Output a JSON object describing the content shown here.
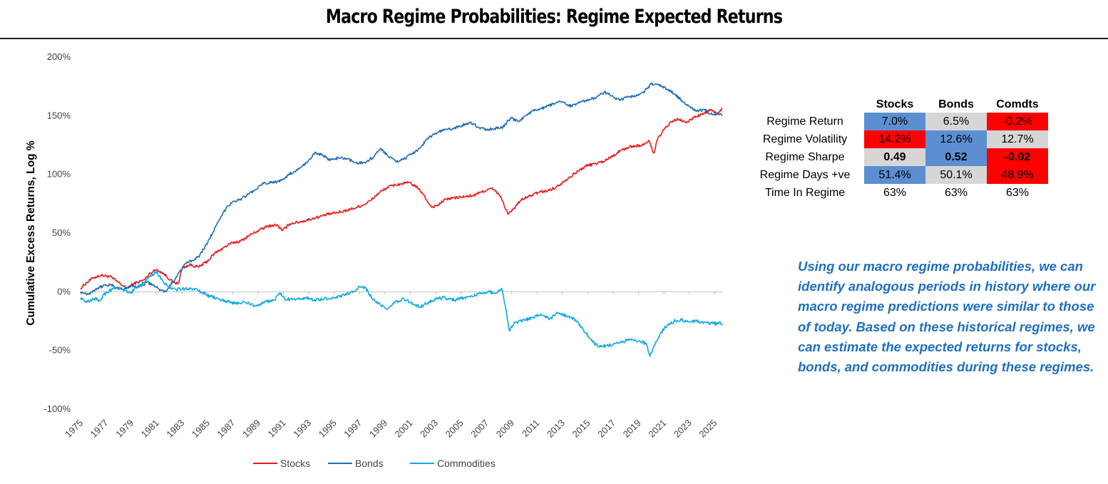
{
  "title": "Macro Regime Probabilities: Regime Expected Returns",
  "chart_data": {
    "type": "line",
    "ylabel": "Cumulative Excess Returns, Log %",
    "ylim": [
      -1.0,
      2.0
    ],
    "y_ticks": [
      "-100%",
      "-50%",
      "0%",
      "50%",
      "100%",
      "150%",
      "200%"
    ],
    "y_tick_values": [
      -1.0,
      -0.5,
      0,
      0.5,
      1.0,
      1.5,
      2.0
    ],
    "xlim": [
      1975,
      2025.6
    ],
    "x_ticks": [
      "1975",
      "1977",
      "1979",
      "1981",
      "1983",
      "1985",
      "1987",
      "1989",
      "1991",
      "1993",
      "1995",
      "1997",
      "1999",
      "2001",
      "2003",
      "2005",
      "2007",
      "2009",
      "2011",
      "2013",
      "2015",
      "2017",
      "2019",
      "2021",
      "2023",
      "2025"
    ],
    "legend_position": "bottom",
    "series": [
      {
        "name": "Stocks",
        "color": "#e8191a",
        "points": [
          [
            1975,
            0.03
          ],
          [
            1975.5,
            0.08
          ],
          [
            1976,
            0.12
          ],
          [
            1976.6,
            0.14
          ],
          [
            1977.3,
            0.13
          ],
          [
            1978,
            0.08
          ],
          [
            1978.6,
            0.03
          ],
          [
            1979.2,
            0.07
          ],
          [
            1980,
            0.1
          ],
          [
            1980.5,
            0.16
          ],
          [
            1981,
            0.19
          ],
          [
            1981.6,
            0.15
          ],
          [
            1982.3,
            0.08
          ],
          [
            1982.7,
            0.07
          ],
          [
            1983,
            0.2
          ],
          [
            1983.6,
            0.23
          ],
          [
            1984.3,
            0.21
          ],
          [
            1985,
            0.26
          ],
          [
            1985.6,
            0.33
          ],
          [
            1986.2,
            0.37
          ],
          [
            1987,
            0.42
          ],
          [
            1987.6,
            0.43
          ],
          [
            1988.3,
            0.48
          ],
          [
            1989,
            0.52
          ],
          [
            1989.8,
            0.56
          ],
          [
            1990.5,
            0.57
          ],
          [
            1990.9,
            0.52
          ],
          [
            1991.5,
            0.58
          ],
          [
            1992.5,
            0.6
          ],
          [
            1993.5,
            0.63
          ],
          [
            1994.5,
            0.66
          ],
          [
            1995.5,
            0.68
          ],
          [
            1996.5,
            0.71
          ],
          [
            1997.3,
            0.74
          ],
          [
            1997.9,
            0.78
          ],
          [
            1998.5,
            0.84
          ],
          [
            1999.2,
            0.89
          ],
          [
            1999.8,
            0.91
          ],
          [
            2000.3,
            0.92
          ],
          [
            2000.9,
            0.93
          ],
          [
            2001.4,
            0.9
          ],
          [
            2001.9,
            0.85
          ],
          [
            2002.3,
            0.78
          ],
          [
            2002.7,
            0.72
          ],
          [
            2003.2,
            0.74
          ],
          [
            2003.8,
            0.79
          ],
          [
            2004.5,
            0.8
          ],
          [
            2005.3,
            0.81
          ],
          [
            2006,
            0.82
          ],
          [
            2006.6,
            0.85
          ],
          [
            2007.4,
            0.88
          ],
          [
            2007.9,
            0.84
          ],
          [
            2008.3,
            0.77
          ],
          [
            2008.7,
            0.66
          ],
          [
            2009.1,
            0.7
          ],
          [
            2009.7,
            0.78
          ],
          [
            2010.5,
            0.82
          ],
          [
            2011.2,
            0.85
          ],
          [
            2011.8,
            0.86
          ],
          [
            2012.5,
            0.89
          ],
          [
            2013.2,
            0.95
          ],
          [
            2014,
            1.01
          ],
          [
            2014.8,
            1.07
          ],
          [
            2015.5,
            1.09
          ],
          [
            2016.2,
            1.11
          ],
          [
            2017,
            1.16
          ],
          [
            2017.7,
            1.21
          ],
          [
            2018.5,
            1.24
          ],
          [
            2019.4,
            1.25
          ],
          [
            2019.8,
            1.29
          ],
          [
            2020.2,
            1.18
          ],
          [
            2020.5,
            1.3
          ],
          [
            2021,
            1.38
          ],
          [
            2021.6,
            1.45
          ],
          [
            2022.2,
            1.47
          ],
          [
            2022.8,
            1.44
          ],
          [
            2023.4,
            1.49
          ],
          [
            2024,
            1.51
          ],
          [
            2024.7,
            1.55
          ],
          [
            2025.2,
            1.51
          ],
          [
            2025.6,
            1.56
          ]
        ]
      },
      {
        "name": "Bonds",
        "color": "#1f6db5",
        "points": [
          [
            1975,
            0.0
          ],
          [
            1975.6,
            -0.02
          ],
          [
            1976.3,
            0.03
          ],
          [
            1977,
            0.06
          ],
          [
            1977.6,
            0.05
          ],
          [
            1978.3,
            0.02
          ],
          [
            1979,
            0.05
          ],
          [
            1979.6,
            0.04
          ],
          [
            1980.2,
            0.08
          ],
          [
            1980.7,
            0.06
          ],
          [
            1981.2,
            0.02
          ],
          [
            1981.7,
            0.0
          ],
          [
            1982.3,
            0.09
          ],
          [
            1982.8,
            0.17
          ],
          [
            1983.3,
            0.24
          ],
          [
            1983.8,
            0.27
          ],
          [
            1984.3,
            0.3
          ],
          [
            1984.8,
            0.38
          ],
          [
            1985.4,
            0.5
          ],
          [
            1986,
            0.62
          ],
          [
            1986.5,
            0.72
          ],
          [
            1987,
            0.77
          ],
          [
            1987.5,
            0.78
          ],
          [
            1988.2,
            0.83
          ],
          [
            1988.8,
            0.87
          ],
          [
            1989.4,
            0.92
          ],
          [
            1990,
            0.93
          ],
          [
            1990.6,
            0.94
          ],
          [
            1991.2,
            0.98
          ],
          [
            1991.8,
            1.02
          ],
          [
            1992.4,
            1.06
          ],
          [
            1993,
            1.12
          ],
          [
            1993.5,
            1.19
          ],
          [
            1994.1,
            1.16
          ],
          [
            1994.7,
            1.12
          ],
          [
            1995.3,
            1.14
          ],
          [
            1996,
            1.13
          ],
          [
            1996.7,
            1.1
          ],
          [
            1997.4,
            1.1
          ],
          [
            1998.1,
            1.15
          ],
          [
            1998.7,
            1.22
          ],
          [
            1999.3,
            1.15
          ],
          [
            1999.9,
            1.11
          ],
          [
            2000.5,
            1.13
          ],
          [
            2001.2,
            1.18
          ],
          [
            2001.8,
            1.23
          ],
          [
            2002.4,
            1.31
          ],
          [
            2003,
            1.35
          ],
          [
            2003.7,
            1.38
          ],
          [
            2004.4,
            1.39
          ],
          [
            2005.1,
            1.42
          ],
          [
            2005.8,
            1.44
          ],
          [
            2006.4,
            1.4
          ],
          [
            2007,
            1.38
          ],
          [
            2007.6,
            1.39
          ],
          [
            2008.3,
            1.4
          ],
          [
            2008.9,
            1.48
          ],
          [
            2009.5,
            1.45
          ],
          [
            2010.2,
            1.51
          ],
          [
            2010.9,
            1.55
          ],
          [
            2011.6,
            1.57
          ],
          [
            2012.3,
            1.6
          ],
          [
            2013,
            1.62
          ],
          [
            2013.7,
            1.58
          ],
          [
            2014.3,
            1.62
          ],
          [
            2015,
            1.63
          ],
          [
            2015.7,
            1.66
          ],
          [
            2016.3,
            1.7
          ],
          [
            2016.9,
            1.67
          ],
          [
            2017.5,
            1.63
          ],
          [
            2018.2,
            1.66
          ],
          [
            2018.9,
            1.67
          ],
          [
            2019.5,
            1.71
          ],
          [
            2020,
            1.77
          ],
          [
            2020.6,
            1.76
          ],
          [
            2021.2,
            1.73
          ],
          [
            2021.8,
            1.69
          ],
          [
            2022.4,
            1.63
          ],
          [
            2023,
            1.58
          ],
          [
            2023.6,
            1.54
          ],
          [
            2024.2,
            1.55
          ],
          [
            2024.8,
            1.51
          ],
          [
            2025.3,
            1.52
          ],
          [
            2025.6,
            1.5
          ]
        ]
      },
      {
        "name": "Commodities",
        "color": "#12a8e0",
        "points": [
          [
            1975,
            -0.05
          ],
          [
            1975.5,
            -0.09
          ],
          [
            1976,
            -0.06
          ],
          [
            1976.5,
            -0.07
          ],
          [
            1977,
            -0.01
          ],
          [
            1977.6,
            0.03
          ],
          [
            1978.3,
            0.02
          ],
          [
            1978.9,
            -0.01
          ],
          [
            1979.5,
            0.04
          ],
          [
            1980,
            0.08
          ],
          [
            1980.5,
            0.14
          ],
          [
            1981,
            0.17
          ],
          [
            1981.5,
            0.09
          ],
          [
            1982,
            0.04
          ],
          [
            1982.5,
            0.02
          ],
          [
            1983,
            0.02
          ],
          [
            1983.7,
            0.03
          ],
          [
            1984.5,
            0.0
          ],
          [
            1985.2,
            -0.04
          ],
          [
            1985.9,
            -0.06
          ],
          [
            1986.5,
            -0.08
          ],
          [
            1987.2,
            -0.1
          ],
          [
            1988,
            -0.09
          ],
          [
            1988.8,
            -0.12
          ],
          [
            1989.5,
            -0.09
          ],
          [
            1990.3,
            -0.07
          ],
          [
            1990.7,
            -0.01
          ],
          [
            1991.1,
            -0.06
          ],
          [
            1991.9,
            -0.07
          ],
          [
            1992.7,
            -0.05
          ],
          [
            1993.4,
            -0.07
          ],
          [
            1994.2,
            -0.06
          ],
          [
            1995,
            -0.05
          ],
          [
            1995.8,
            -0.03
          ],
          [
            1996.5,
            0.0
          ],
          [
            1997,
            0.04
          ],
          [
            1997.5,
            0.03
          ],
          [
            1998,
            -0.06
          ],
          [
            1998.7,
            -0.12
          ],
          [
            1999.2,
            -0.15
          ],
          [
            1999.8,
            -0.09
          ],
          [
            2000.5,
            -0.06
          ],
          [
            2001.2,
            -0.1
          ],
          [
            2001.8,
            -0.13
          ],
          [
            2002.4,
            -0.09
          ],
          [
            2003,
            -0.06
          ],
          [
            2003.7,
            -0.05
          ],
          [
            2004.5,
            -0.07
          ],
          [
            2005.2,
            -0.05
          ],
          [
            2005.9,
            -0.04
          ],
          [
            2006.5,
            -0.01
          ],
          [
            2007.2,
            0.0
          ],
          [
            2007.8,
            -0.01
          ],
          [
            2008.2,
            0.03
          ],
          [
            2008.5,
            -0.12
          ],
          [
            2008.8,
            -0.33
          ],
          [
            2009.3,
            -0.26
          ],
          [
            2010,
            -0.24
          ],
          [
            2010.7,
            -0.22
          ],
          [
            2011.3,
            -0.19
          ],
          [
            2012,
            -0.23
          ],
          [
            2012.7,
            -0.18
          ],
          [
            2013.4,
            -0.21
          ],
          [
            2014,
            -0.24
          ],
          [
            2014.6,
            -0.32
          ],
          [
            2015.2,
            -0.4
          ],
          [
            2015.8,
            -0.47
          ],
          [
            2016.4,
            -0.46
          ],
          [
            2017,
            -0.45
          ],
          [
            2017.6,
            -0.43
          ],
          [
            2018.3,
            -0.41
          ],
          [
            2019,
            -0.42
          ],
          [
            2019.6,
            -0.44
          ],
          [
            2019.9,
            -0.55
          ],
          [
            2020.3,
            -0.45
          ],
          [
            2020.8,
            -0.34
          ],
          [
            2021.3,
            -0.28
          ],
          [
            2021.8,
            -0.25
          ],
          [
            2022.4,
            -0.24
          ],
          [
            2023,
            -0.26
          ],
          [
            2023.6,
            -0.25
          ],
          [
            2024.2,
            -0.26
          ],
          [
            2024.8,
            -0.27
          ],
          [
            2025.6,
            -0.27
          ]
        ]
      }
    ]
  },
  "stats_table": {
    "headers": [
      "Stocks",
      "Bonds",
      "Comdts"
    ],
    "rows": [
      {
        "label": "Regime Return",
        "values": [
          "7.0%",
          "6.5%",
          "-0.2%"
        ]
      },
      {
        "label": "Regime Volatility",
        "values": [
          "14.2%",
          "12.6%",
          "12.7%"
        ]
      },
      {
        "label": "Regime Sharpe",
        "values": [
          "0.49",
          "0.52",
          "-0.02"
        ]
      },
      {
        "label": "Regime Days +ve",
        "values": [
          "51.4%",
          "50.1%",
          "48.9%"
        ]
      },
      {
        "label": "Time In Regime",
        "values": [
          "63%",
          "63%",
          "63%"
        ]
      }
    ],
    "cell_colors": [
      [
        "#5b8fd1",
        "#d6d6d6",
        "#ff0000"
      ],
      [
        "#ff0000",
        "#5b8fd1",
        "#d6d6d6"
      ],
      [
        "#d6d6d6",
        "#5b8fd1",
        "#ff0000"
      ],
      [
        "#5b8fd1",
        "#d6d6d6",
        "#ff0000"
      ],
      [
        "#ffffff",
        "#ffffff",
        "#ffffff"
      ]
    ]
  },
  "note": "Using our macro regime probabilities, we can identify analogous periods in history where our macro regime predictions were similar to those of today. Based on these historical regimes, we can estimate the expected returns for stocks, bonds, and commodities during these regimes."
}
